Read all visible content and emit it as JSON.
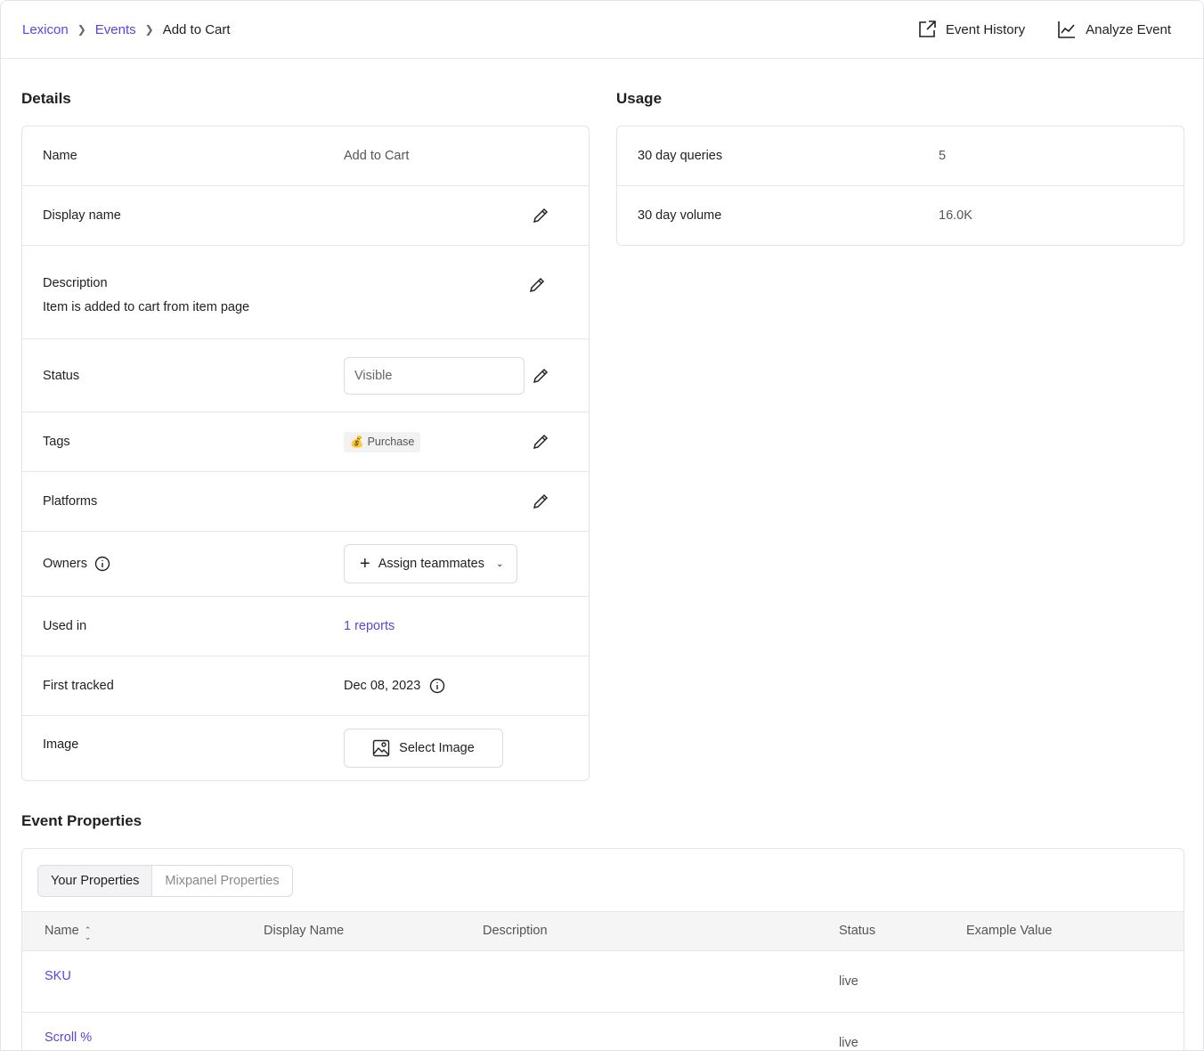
{
  "breadcrumb": {
    "items": [
      "Lexicon",
      "Events"
    ],
    "current": "Add to Cart"
  },
  "header_actions": {
    "event_history": "Event History",
    "analyze_event": "Analyze Event"
  },
  "details": {
    "title": "Details",
    "name_label": "Name",
    "name_value": "Add to Cart",
    "display_name_label": "Display name",
    "description_label": "Description",
    "description_value": "Item is added to cart from item page",
    "status_label": "Status",
    "status_value": "Visible",
    "tags_label": "Tags",
    "tag_emoji": "💰",
    "tag_value": "Purchase",
    "platforms_label": "Platforms",
    "owners_label": "Owners",
    "assign_label": "Assign teammates",
    "used_in_label": "Used in",
    "used_in_value": "1 reports",
    "first_tracked_label": "First tracked",
    "first_tracked_value": "Dec 08, 2023",
    "image_label": "Image",
    "select_image_label": "Select Image"
  },
  "usage": {
    "title": "Usage",
    "rows": [
      {
        "label": "30 day queries",
        "value": "5"
      },
      {
        "label": "30 day volume",
        "value": "16.0K"
      }
    ]
  },
  "event_properties": {
    "title": "Event Properties",
    "tabs": [
      "Your Properties",
      "Mixpanel Properties"
    ],
    "columns": [
      "Name",
      "Display Name",
      "Description",
      "Status",
      "Example Value"
    ],
    "rows": [
      {
        "name": "SKU",
        "status": "live"
      },
      {
        "name": "Scroll %",
        "status": "live"
      }
    ]
  },
  "colors": {
    "accent": "#5b44e0",
    "border": "#e4e4e8",
    "header_bg": "#f5f5f6"
  }
}
